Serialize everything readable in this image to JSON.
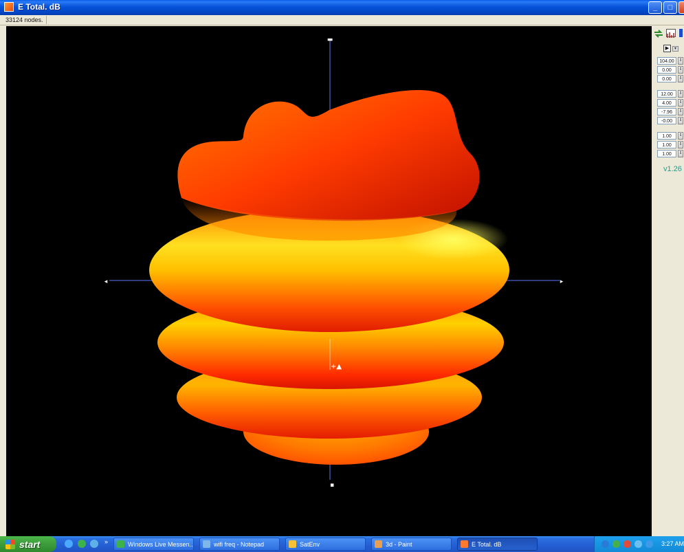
{
  "window": {
    "title": "E Total. dB",
    "buttons": {
      "minimize": "_",
      "maximize": "□"
    },
    "colors": {
      "titlebar": "#0553d9",
      "viewport_bg": "#000000"
    }
  },
  "status": {
    "node_count": "33124 nodes."
  },
  "viewport": {
    "axis_labels": {
      "top": "▬",
      "left": "◂",
      "right": "▸",
      "bottom": "▪",
      "center": "+▲"
    },
    "surface_colors": [
      "#c41000",
      "#ff3d00",
      "#ff8c00",
      "#ffc400",
      "#ffff40"
    ]
  },
  "panel": {
    "tools": [
      "swap-icon",
      "graph-icon",
      "blue-icon"
    ],
    "play_label": "▶",
    "dropdown_label": "▾",
    "spin_label": "⇕",
    "group1": [
      "104.00",
      "0.00",
      "0.00"
    ],
    "group2": [
      "12.00",
      "4.00",
      "-7.96",
      "-0.00"
    ],
    "group3": [
      "1.00",
      "1.00",
      "1.00"
    ],
    "version": "v1.26"
  },
  "taskbar": {
    "start_label": "start",
    "quicklaunch_more": "»",
    "tasks": [
      {
        "label": "Windows Live Messen...",
        "icon": "messenger-icon",
        "color": "#3bb24b"
      },
      {
        "label": "wifi freq - Notepad",
        "icon": "notepad-icon",
        "color": "#7fb8e8"
      },
      {
        "label": "SatEnv",
        "icon": "app-icon",
        "color": "#f6c23a"
      },
      {
        "label": "3d - Paint",
        "icon": "paint-icon",
        "color": "#e8a050"
      },
      {
        "label": "E Total. dB",
        "icon": "plot-icon",
        "color": "#ff7a30"
      }
    ],
    "clock": "3:27 AM"
  }
}
